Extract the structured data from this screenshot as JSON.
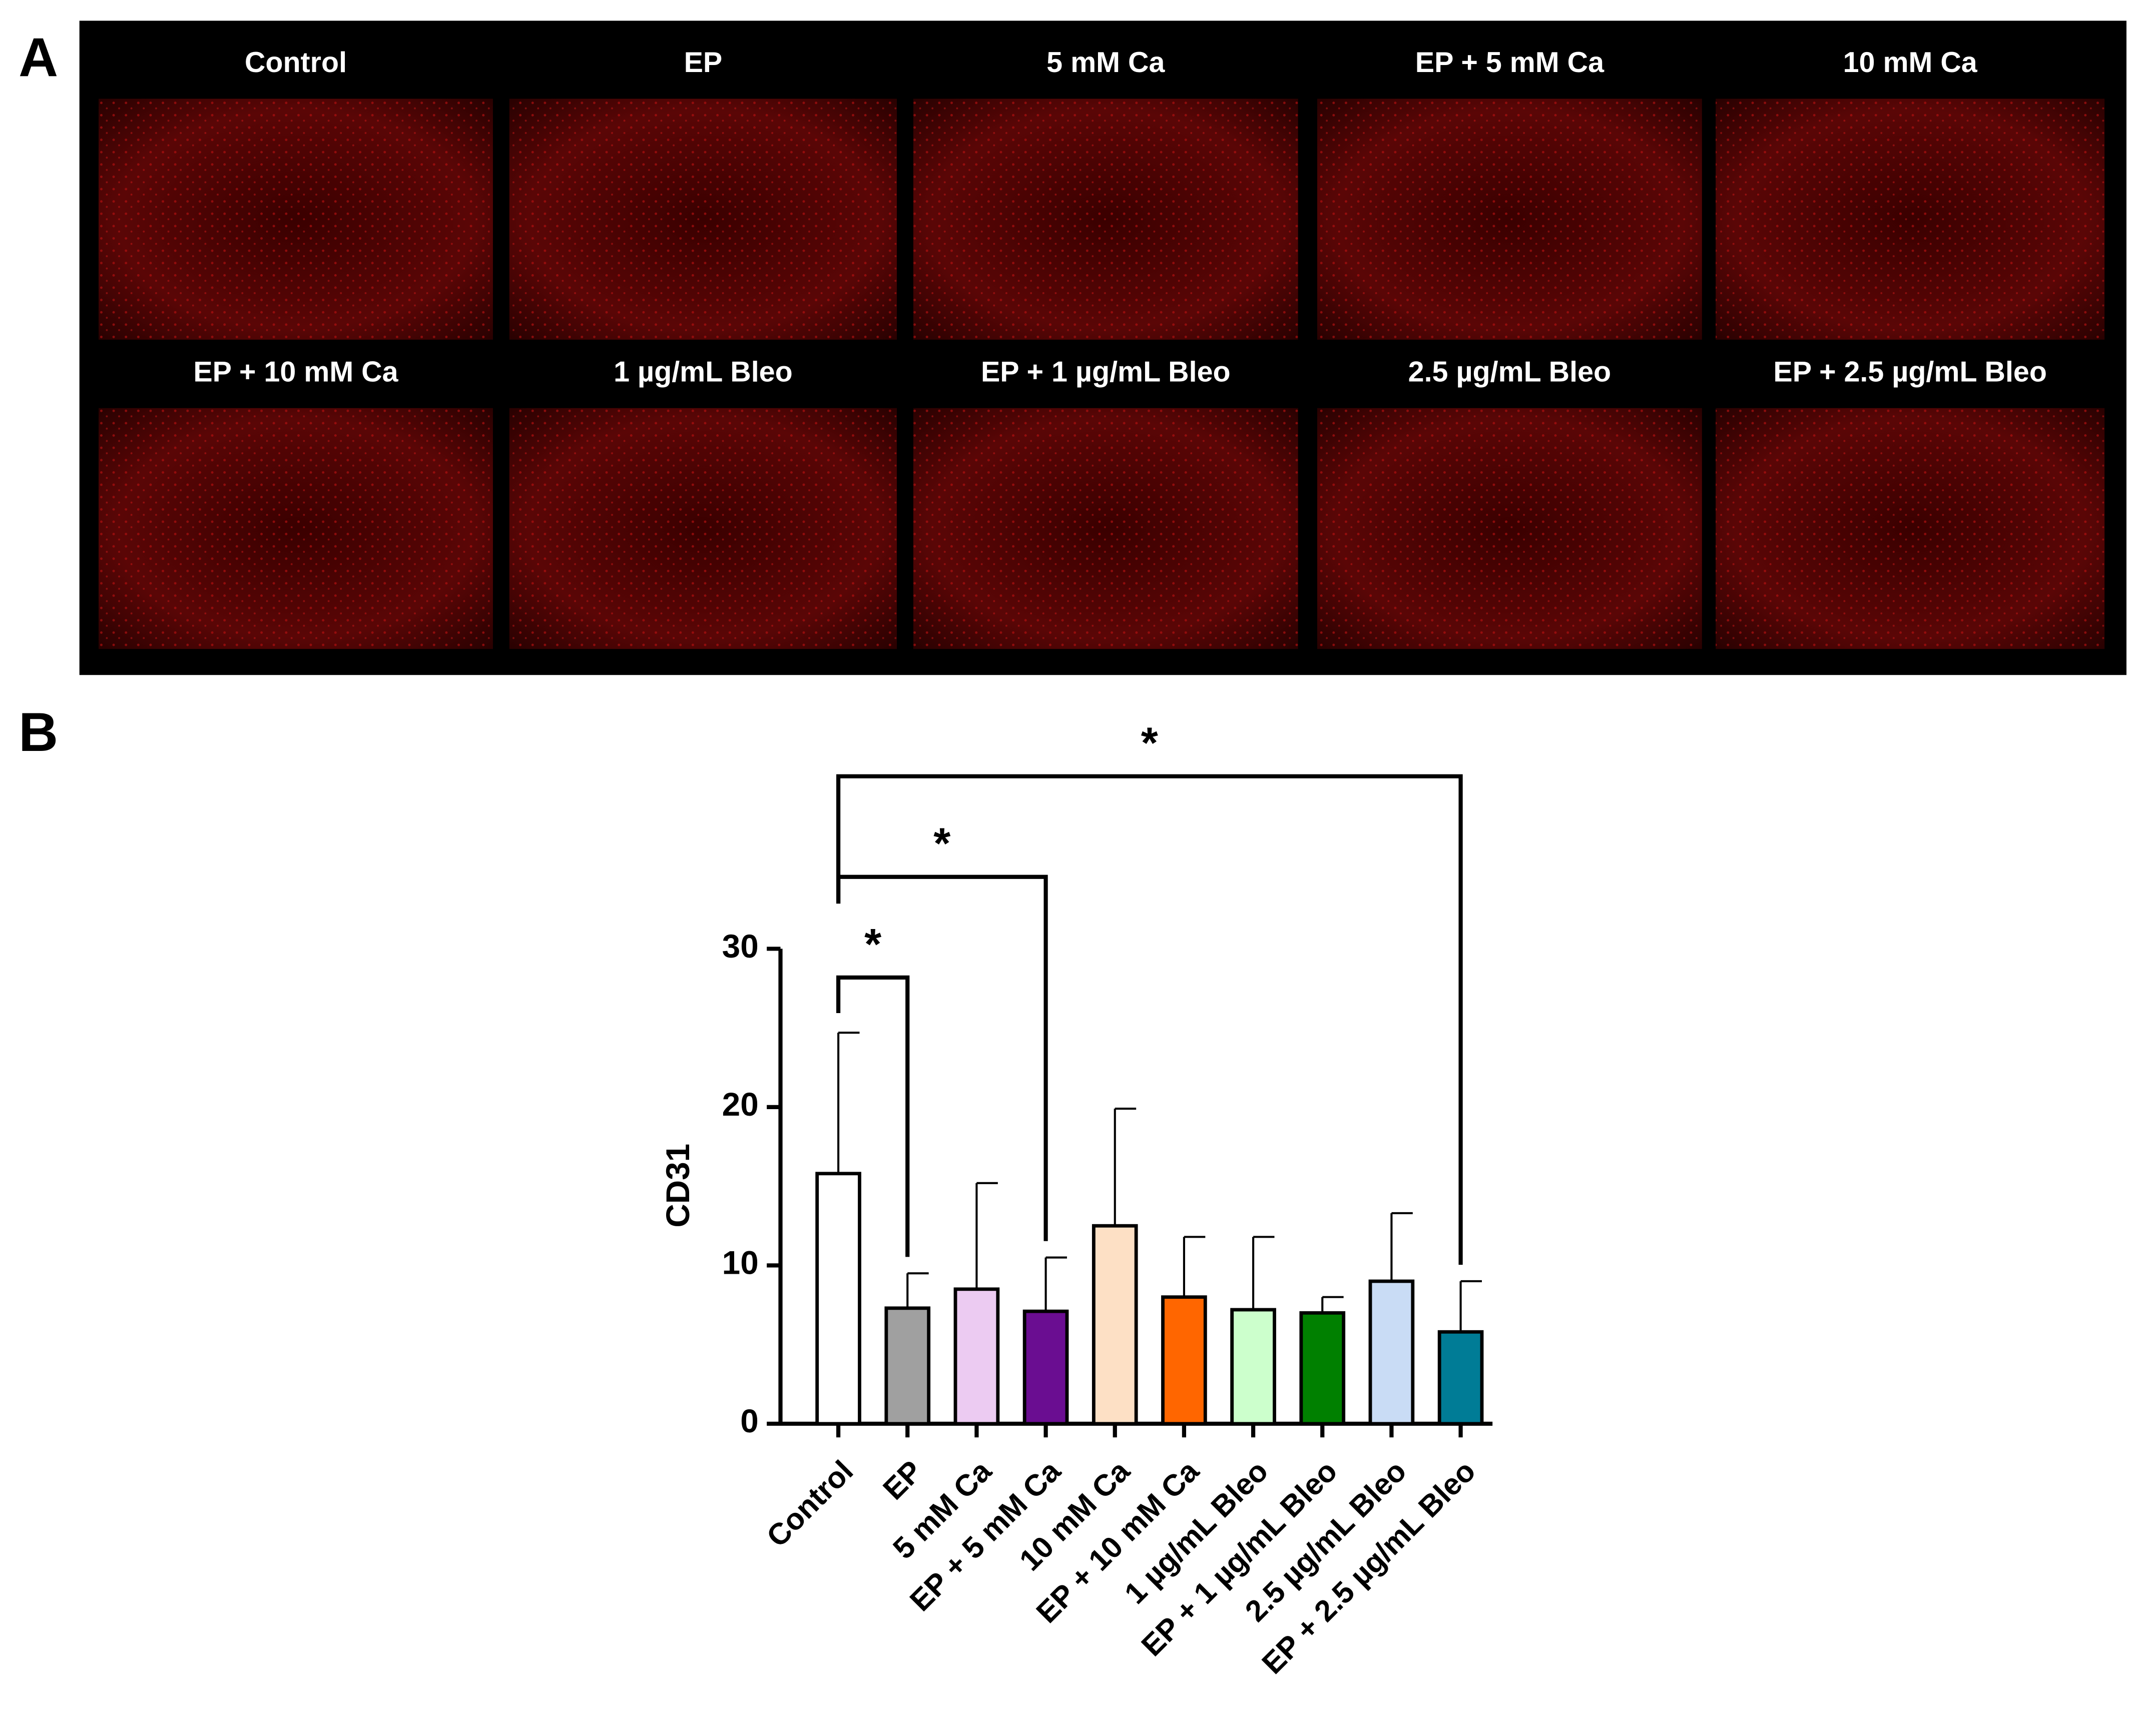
{
  "panel_labels": [
    "A",
    "B"
  ],
  "image_panel": {
    "labels": [
      "Control",
      "EP",
      "5 mM Ca",
      "EP + 5 mM Ca",
      "10 mM Ca",
      "EP + 10 mM Ca",
      "1 µg/mL Bleo",
      "EP + 1 µg/mL Bleo",
      "2.5 µg/mL Bleo",
      "EP + 2.5 µg/mL Bleo"
    ]
  },
  "chart_data": {
    "type": "bar",
    "ylabel": "CD31",
    "categories": [
      "Control",
      "EP",
      "5 mM Ca",
      "EP + 5 mM Ca",
      "10 mM Ca",
      "EP + 10 mM Ca",
      "1 µg/mL Bleo",
      "EP + 1 µg/mL Bleo",
      "2.5 µg/mL Bleo",
      "EP + 2.5 µg/mL Bleo"
    ],
    "values": [
      15.8,
      7.3,
      8.5,
      7.1,
      12.5,
      8.0,
      7.2,
      7.0,
      9.0,
      5.8
    ],
    "errors": [
      8.9,
      2.2,
      6.7,
      3.4,
      7.4,
      3.8,
      4.6,
      1.0,
      4.3,
      3.2
    ],
    "colors": [
      "#ffffff",
      "#a0a0a0",
      "#eccbf2",
      "#6a0d91",
      "#fde0c5",
      "#ff6600",
      "#ccffcc",
      "#008000",
      "#c9dcf5",
      "#007c96"
    ],
    "ylim": [
      0,
      30
    ],
    "yticks": [
      0,
      10,
      20,
      30
    ],
    "significance": [
      {
        "from": 0,
        "to": 1,
        "label": "*"
      },
      {
        "from": 0,
        "to": 3,
        "label": "*"
      },
      {
        "from": 0,
        "to": 9,
        "label": "*"
      }
    ]
  }
}
